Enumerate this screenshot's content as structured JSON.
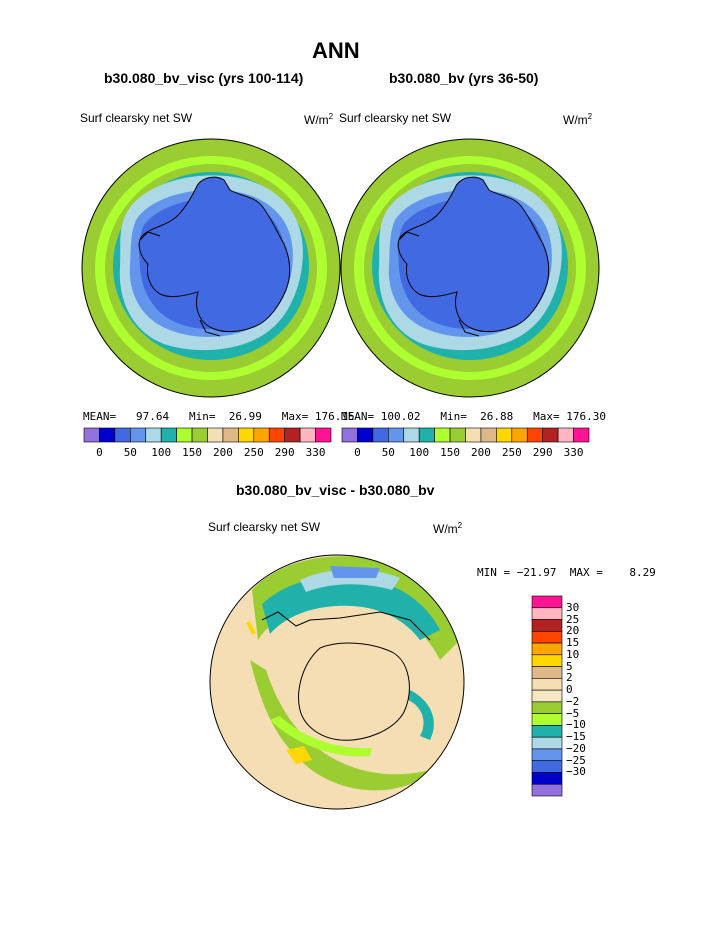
{
  "header": {
    "title": "ANN",
    "left_subtitle": "b30.080_bv_visc (yrs 100-114)",
    "right_subtitle": "b30.080_bv (yrs 36-50)",
    "diff_subtitle": "b30.080_bv_visc - b30.080_bv"
  },
  "colors": {
    "scale": [
      "#9370db",
      "#0000cd",
      "#4169e1",
      "#6495ed",
      "#add8e6",
      "#20b2aa",
      "#adff2f",
      "#9acd32",
      "#f5deb3",
      "#deb887",
      "#ffd700",
      "#ffa500",
      "#ff4500",
      "#b22222",
      "#ffb6c1",
      "#ff1493"
    ],
    "land": "#4169e1",
    "coast": "#000000"
  },
  "chart_data": [
    {
      "type": "heatmap",
      "projection": "south-polar-stereographic",
      "title": "Surf clearsky net SW",
      "units": "W/m2",
      "stats": {
        "mean_label": "MEAN=",
        "mean": "97.64",
        "min_label": "Min=",
        "min": "26.99",
        "max_label": "Max=",
        "max": "176.15"
      },
      "colorbar": {
        "orientation": "horizontal",
        "tick_labels": [
          "0",
          "50",
          "100",
          "150",
          "200",
          "250",
          "290",
          "330"
        ]
      }
    },
    {
      "type": "heatmap",
      "projection": "south-polar-stereographic",
      "title": "Surf clearsky net SW",
      "units": "W/m2",
      "stats": {
        "mean_label": "MEAN=",
        "mean": "100.02",
        "min_label": "Min=",
        "min": "26.88",
        "max_label": "Max=",
        "max": "176.30"
      },
      "colorbar": {
        "orientation": "horizontal",
        "tick_labels": [
          "0",
          "50",
          "100",
          "150",
          "200",
          "250",
          "290",
          "330"
        ]
      }
    },
    {
      "type": "heatmap",
      "projection": "south-polar-stereographic",
      "title": "Surf clearsky net SW",
      "units": "W/m2",
      "stats": {
        "text": "MIN = −21.97  MAX =    8.29"
      },
      "colorbar": {
        "orientation": "vertical",
        "labels": [
          "30",
          "25",
          "20",
          "15",
          "10",
          "5",
          "2",
          "0",
          "−2",
          "−5",
          "−10",
          "−15",
          "−20",
          "−25",
          "−30"
        ],
        "colors": [
          "#ff1493",
          "#ffb6c1",
          "#b22222",
          "#ff4500",
          "#ffa500",
          "#ffd700",
          "#deb887",
          "#f5deb3",
          "#f5e6c4",
          "#9acd32",
          "#adff2f",
          "#20b2aa",
          "#add8e6",
          "#6495ed",
          "#4169e1",
          "#0000cd",
          "#9370db"
        ]
      }
    }
  ],
  "units_text": {
    "left": "W/m",
    "right": "W/m",
    "diff": "W/m",
    "sup": "2"
  }
}
